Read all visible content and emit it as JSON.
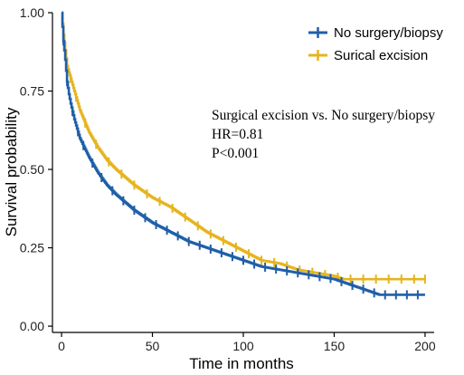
{
  "chart_data": {
    "type": "line",
    "subtype": "kaplan-meier step curve with censor marks",
    "xlabel": "Time in months",
    "ylabel": "Survival probability",
    "xlim": [
      -5,
      205
    ],
    "ylim": [
      -0.02,
      1.0
    ],
    "x_ticks": [
      "0",
      "50",
      "100",
      "150",
      "200"
    ],
    "y_ticks": [
      "0.00",
      "0.25",
      "0.50",
      "0.75",
      "1.00"
    ],
    "grid": false,
    "legend_position": "top-right",
    "series": [
      {
        "name": "No surgery/biopsy",
        "color": "#1f5fa8",
        "points": [
          [
            0,
            1.0
          ],
          [
            1,
            0.91
          ],
          [
            2,
            0.85
          ],
          [
            3,
            0.78
          ],
          [
            4,
            0.74
          ],
          [
            5,
            0.71
          ],
          [
            7,
            0.66
          ],
          [
            10,
            0.6
          ],
          [
            15,
            0.54
          ],
          [
            20,
            0.49
          ],
          [
            25,
            0.45
          ],
          [
            30,
            0.42
          ],
          [
            40,
            0.37
          ],
          [
            50,
            0.33
          ],
          [
            60,
            0.3
          ],
          [
            70,
            0.27
          ],
          [
            80,
            0.25
          ],
          [
            90,
            0.23
          ],
          [
            100,
            0.21
          ],
          [
            110,
            0.19
          ],
          [
            120,
            0.18
          ],
          [
            130,
            0.17
          ],
          [
            140,
            0.16
          ],
          [
            150,
            0.15
          ],
          [
            160,
            0.13
          ],
          [
            170,
            0.11
          ],
          [
            175,
            0.1
          ],
          [
            200,
            0.1
          ]
        ],
        "censor_x": [
          1,
          3,
          6,
          9,
          12,
          17,
          22,
          28,
          34,
          40,
          46,
          52,
          58,
          64,
          70,
          76,
          82,
          88,
          94,
          100,
          106,
          112,
          118,
          124,
          130,
          136,
          142,
          148,
          154,
          160,
          166,
          172,
          178,
          184,
          190,
          196
        ]
      },
      {
        "name": "Surical excision",
        "color": "#e6b41e",
        "points": [
          [
            0,
            1.0
          ],
          [
            1,
            0.93
          ],
          [
            2,
            0.88
          ],
          [
            3,
            0.83
          ],
          [
            5,
            0.79
          ],
          [
            7,
            0.75
          ],
          [
            10,
            0.69
          ],
          [
            15,
            0.62
          ],
          [
            20,
            0.57
          ],
          [
            25,
            0.53
          ],
          [
            30,
            0.5
          ],
          [
            40,
            0.45
          ],
          [
            50,
            0.41
          ],
          [
            60,
            0.38
          ],
          [
            70,
            0.34
          ],
          [
            80,
            0.3
          ],
          [
            90,
            0.27
          ],
          [
            100,
            0.24
          ],
          [
            110,
            0.21
          ],
          [
            120,
            0.2
          ],
          [
            130,
            0.18
          ],
          [
            140,
            0.17
          ],
          [
            150,
            0.16
          ],
          [
            155,
            0.15
          ],
          [
            200,
            0.15
          ]
        ],
        "censor_x": [
          2,
          5,
          8,
          13,
          19,
          26,
          33,
          40,
          47,
          54,
          61,
          68,
          75,
          82,
          89,
          96,
          103,
          110,
          117,
          124,
          131,
          138,
          145,
          152,
          159,
          166,
          173,
          180,
          187,
          194,
          200
        ]
      }
    ],
    "annotations": [
      "Surgical excision vs. No surgery/biopsy",
      "HR=0.81",
      "P<0.001"
    ]
  }
}
